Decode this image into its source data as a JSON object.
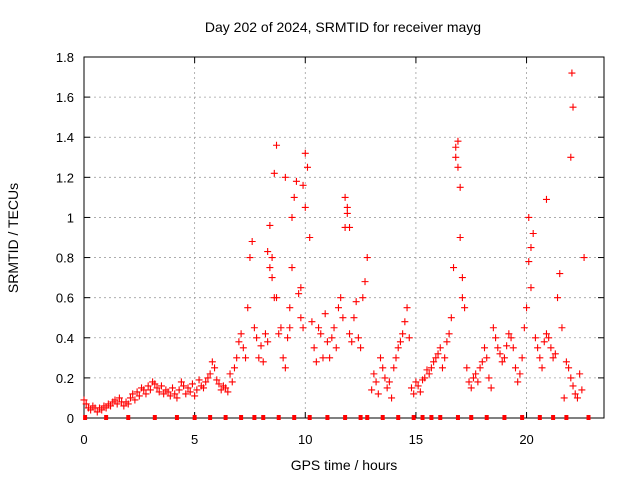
{
  "chart_data": {
    "type": "scatter",
    "title": "Day 202 of 2024, SRMTID for receiver mayg",
    "xlabel": "GPS time / hours",
    "ylabel": "SRMTID / TECUs",
    "xlim": [
      0,
      23.5
    ],
    "ylim": [
      0,
      1.8
    ],
    "xticks": [
      "0",
      "5",
      "10",
      "15",
      "20"
    ],
    "xtick_values": [
      0,
      5,
      10,
      15,
      20
    ],
    "yticks": [
      "0",
      "0.2",
      "0.4",
      "0.6",
      "0.8",
      "1",
      "1.2",
      "1.4",
      "1.6",
      "1.8"
    ],
    "ytick_values": [
      0,
      0.2,
      0.4,
      0.6,
      0.8,
      1.0,
      1.2,
      1.4,
      1.6,
      1.8
    ],
    "grid": true,
    "marker": "+",
    "marker_color": "#ff0000",
    "series": [
      {
        "name": "SRMTID",
        "x": [
          0.0,
          0.1,
          0.2,
          0.3,
          0.4,
          0.5,
          0.6,
          0.7,
          0.8,
          0.9,
          1.0,
          1.1,
          1.2,
          1.3,
          1.4,
          1.5,
          1.6,
          1.7,
          1.8,
          1.9,
          2.0,
          2.1,
          2.2,
          2.3,
          2.4,
          2.5,
          2.6,
          2.7,
          2.8,
          2.9,
          3.0,
          3.1,
          3.2,
          3.3,
          3.4,
          3.5,
          3.6,
          3.7,
          3.8,
          3.9,
          4.0,
          4.1,
          4.2,
          4.3,
          4.4,
          4.5,
          4.6,
          4.7,
          4.8,
          4.9,
          5.0,
          5.1,
          5.2,
          5.3,
          5.4,
          5.5,
          5.6,
          5.7,
          5.8,
          5.9,
          6.0,
          6.1,
          6.2,
          6.3,
          6.4,
          6.5,
          6.6,
          6.7,
          6.8,
          6.9,
          7.0,
          7.1,
          7.2,
          7.3,
          7.4,
          7.5,
          7.6,
          7.7,
          7.8,
          7.9,
          8.0,
          8.1,
          8.2,
          8.3,
          8.4,
          8.5,
          8.6,
          8.7,
          8.8,
          8.9,
          9.0,
          9.1,
          9.2,
          9.3,
          9.4,
          9.5,
          9.6,
          9.7,
          9.8,
          9.9,
          10.0,
          10.1,
          10.2,
          10.3,
          10.4,
          10.5,
          10.6,
          10.7,
          10.8,
          10.9,
          11.0,
          11.1,
          11.2,
          11.3,
          11.4,
          11.5,
          11.6,
          11.7,
          11.8,
          11.9,
          12.0,
          12.1,
          12.2,
          12.3,
          12.4,
          12.5,
          12.6,
          12.7,
          12.8,
          13.0,
          13.1,
          13.2,
          13.3,
          13.4,
          13.5,
          13.6,
          13.7,
          13.8,
          13.9,
          14.0,
          14.1,
          14.2,
          14.3,
          14.4,
          14.5,
          14.6,
          14.7,
          14.8,
          14.9,
          15.0,
          15.1,
          15.2,
          15.3,
          15.4,
          15.5,
          15.6,
          15.7,
          15.8,
          15.9,
          16.0,
          16.1,
          16.2,
          16.3,
          16.4,
          16.5,
          16.6,
          16.7,
          16.8,
          16.9,
          17.0,
          17.1,
          17.2,
          17.3,
          17.4,
          17.5,
          17.6,
          17.7,
          17.8,
          17.9,
          18.0,
          18.1,
          18.2,
          18.3,
          18.4,
          18.5,
          18.6,
          18.7,
          18.8,
          18.9,
          19.0,
          19.1,
          19.2,
          19.3,
          19.4,
          19.5,
          19.6,
          19.7,
          19.8,
          19.9,
          20.0,
          20.1,
          20.2,
          20.3,
          20.4,
          20.5,
          20.6,
          20.7,
          20.8,
          20.9,
          21.0,
          21.1,
          21.2,
          21.3,
          21.4,
          21.5,
          21.6,
          21.7,
          21.8,
          21.9,
          22.0,
          22.1,
          22.2,
          22.3,
          22.4,
          22.5,
          22.6,
          8.3,
          8.4,
          8.5,
          8.6,
          8.7,
          9.1,
          9.3,
          9.4,
          9.8,
          9.9,
          10.0,
          11.8,
          11.9,
          12.0,
          16.8,
          16.9,
          17.0,
          17.1,
          22.0,
          22.05,
          22.1,
          20.1,
          20.2,
          20.9
        ],
        "y": [
          0.09,
          0.07,
          0.05,
          0.04,
          0.06,
          0.05,
          0.03,
          0.05,
          0.04,
          0.06,
          0.05,
          0.07,
          0.06,
          0.08,
          0.09,
          0.07,
          0.1,
          0.08,
          0.06,
          0.08,
          0.07,
          0.1,
          0.12,
          0.09,
          0.13,
          0.11,
          0.15,
          0.14,
          0.12,
          0.16,
          0.14,
          0.18,
          0.17,
          0.15,
          0.13,
          0.16,
          0.12,
          0.14,
          0.13,
          0.11,
          0.15,
          0.12,
          0.1,
          0.14,
          0.18,
          0.16,
          0.12,
          0.15,
          0.13,
          0.17,
          0.11,
          0.14,
          0.19,
          0.16,
          0.15,
          0.18,
          0.2,
          0.22,
          0.28,
          0.25,
          0.19,
          0.17,
          0.14,
          0.16,
          0.15,
          0.13,
          0.22,
          0.18,
          0.25,
          0.3,
          0.38,
          0.42,
          0.35,
          0.3,
          0.55,
          0.8,
          0.88,
          0.45,
          0.4,
          0.3,
          0.36,
          0.28,
          0.42,
          0.38,
          0.75,
          0.8,
          1.22,
          1.36,
          0.42,
          0.45,
          0.3,
          0.25,
          0.4,
          0.55,
          0.75,
          1.1,
          1.18,
          0.62,
          0.5,
          0.45,
          1.32,
          1.25,
          0.9,
          0.48,
          0.35,
          0.28,
          0.45,
          0.42,
          0.3,
          0.52,
          0.38,
          0.3,
          0.4,
          0.45,
          0.35,
          0.55,
          0.6,
          0.5,
          0.95,
          1.05,
          0.42,
          0.38,
          0.5,
          0.58,
          0.4,
          0.35,
          0.6,
          0.68,
          0.8,
          0.14,
          0.22,
          0.18,
          0.12,
          0.3,
          0.25,
          0.2,
          0.15,
          0.18,
          0.1,
          0.25,
          0.3,
          0.35,
          0.38,
          0.42,
          0.48,
          0.55,
          0.4,
          0.15,
          0.12,
          0.18,
          0.16,
          0.13,
          0.19,
          0.2,
          0.24,
          0.22,
          0.25,
          0.28,
          0.3,
          0.32,
          0.35,
          0.25,
          0.3,
          0.38,
          0.42,
          0.5,
          0.75,
          1.3,
          1.38,
          0.9,
          0.6,
          0.55,
          0.25,
          0.18,
          0.15,
          0.2,
          0.22,
          0.18,
          0.25,
          0.28,
          0.35,
          0.3,
          0.2,
          0.15,
          0.45,
          0.4,
          0.35,
          0.32,
          0.28,
          0.3,
          0.36,
          0.42,
          0.4,
          0.35,
          0.25,
          0.18,
          0.22,
          0.3,
          0.45,
          0.55,
          0.78,
          0.85,
          0.92,
          0.4,
          0.35,
          0.3,
          0.25,
          0.38,
          0.42,
          0.4,
          0.35,
          0.3,
          0.32,
          0.6,
          0.72,
          0.45,
          0.1,
          0.28,
          0.25,
          0.2,
          0.16,
          0.12,
          0.1,
          0.22,
          0.14,
          0.8,
          0.83,
          0.96,
          0.7,
          0.6,
          0.6,
          1.2,
          0.45,
          1.0,
          0.65,
          1.16,
          1.05,
          1.1,
          1.02,
          0.95,
          1.35,
          1.25,
          1.15,
          0.7,
          1.3,
          1.72,
          1.55,
          1.0,
          0.65,
          1.09
        ],
        "gap_markers_x": [
          0.05,
          1.0,
          2.0,
          3.2,
          4.2,
          5.0,
          5.7,
          6.4,
          7.1,
          7.7,
          8.1,
          8.8,
          9.5,
          10.2,
          11.0,
          11.8,
          12.5,
          12.8,
          13.5,
          14.2,
          14.9,
          15.3,
          15.7,
          16.1,
          16.9,
          17.5,
          18.2,
          19.0,
          19.8,
          20.6,
          21.2,
          21.8,
          22.8
        ]
      }
    ]
  }
}
